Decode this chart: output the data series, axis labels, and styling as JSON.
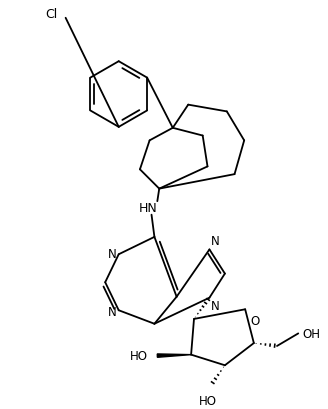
{
  "background_color": "#ffffff",
  "line_color": "#000000",
  "line_width": 1.3,
  "fig_width": 3.28,
  "fig_height": 4.1,
  "dpi": 100,
  "cl_label": "Cl",
  "hn_label": "HN",
  "n_label": "N",
  "ho_label": "HO",
  "o_label": "O",
  "oh_label": "OH"
}
